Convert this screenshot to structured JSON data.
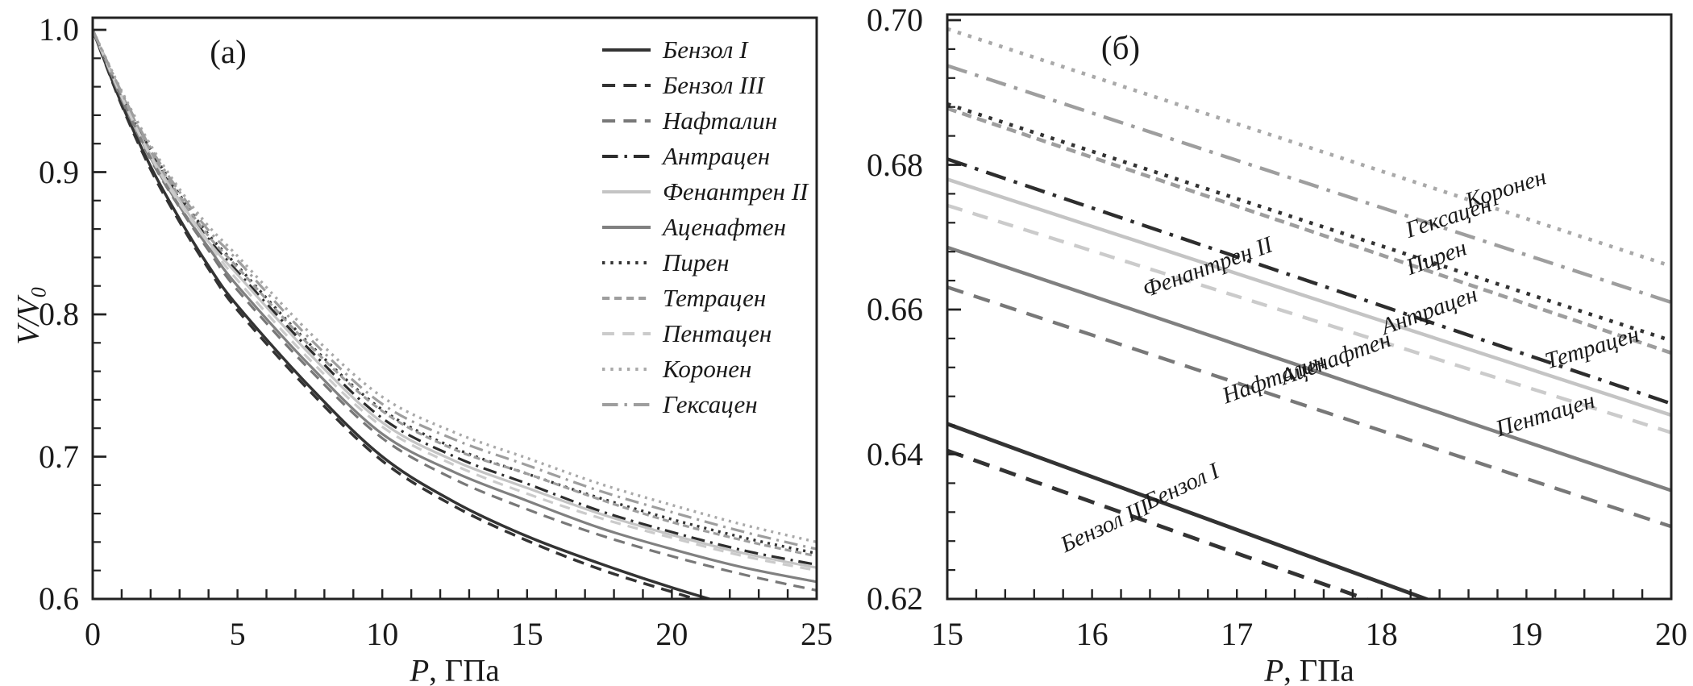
{
  "figure": {
    "background": "#ffffff",
    "axis_color": "#222222",
    "panel_a": {
      "marker": "(a)",
      "x_axis": {
        "title_var": "P",
        "title_unit": ", ГПа",
        "tick_labels": [
          "0",
          "5",
          "10",
          "15",
          "20",
          "25"
        ],
        "tick_values": [
          0,
          5,
          10,
          15,
          20,
          25
        ],
        "minor_step": 1,
        "range": [
          0,
          25
        ]
      },
      "y_axis": {
        "title_var": "V/V",
        "title_sub": "0",
        "tick_labels": [
          "1.0",
          "0.9",
          "0.8",
          "0.7",
          "0.6"
        ],
        "tick_values": [
          1.0,
          0.9,
          0.8,
          0.7,
          0.6
        ],
        "minor_step": 0.02,
        "range": [
          0.6,
          1.0
        ]
      }
    },
    "panel_b": {
      "marker": "(б)",
      "x_axis": {
        "title_var": "P",
        "title_unit": ", ГПа",
        "tick_labels": [
          "15",
          "16",
          "17",
          "18",
          "19",
          "20"
        ],
        "tick_values": [
          15,
          16,
          17,
          18,
          19,
          20
        ],
        "minor_step": 0.2,
        "range": [
          15,
          20
        ]
      },
      "y_axis": {
        "tick_labels": [
          "0.70",
          "0.68",
          "0.66",
          "0.64",
          "0.62"
        ],
        "tick_values": [
          0.7,
          0.68,
          0.66,
          0.64,
          0.62
        ],
        "minor_step": 0.004,
        "range": [
          0.62,
          0.7
        ]
      }
    }
  },
  "chart_data": [
    {
      "type": "line",
      "panel": "a",
      "title": "(a)",
      "xlabel": "P, ГПа",
      "ylabel": "V/V0",
      "xlim": [
        0,
        25
      ],
      "ylim": [
        0.6,
        1.0
      ],
      "grid": false,
      "legend_position": "upper right inside",
      "x": [
        0,
        1,
        2,
        3,
        4,
        5,
        7.5,
        10,
        12.5,
        15,
        17.5,
        20,
        22.5,
        25
      ],
      "series": [
        {
          "name": "Бензол I",
          "values": [
            1.0,
            0.948,
            0.904,
            0.867,
            0.834,
            0.806,
            0.749,
            0.7,
            0.668,
            0.644,
            0.625,
            0.608,
            0.593,
            0.58
          ]
        },
        {
          "name": "Бензол III",
          "values": [
            1.0,
            0.947,
            0.902,
            0.865,
            0.832,
            0.803,
            0.746,
            0.697,
            0.665,
            0.641,
            0.621,
            0.605,
            0.59,
            0.577
          ]
        },
        {
          "name": "Нафталин",
          "values": [
            1.0,
            0.951,
            0.909,
            0.875,
            0.845,
            0.817,
            0.761,
            0.713,
            0.684,
            0.663,
            0.645,
            0.63,
            0.617,
            0.606
          ]
        },
        {
          "name": "Антрацен",
          "values": [
            1.0,
            0.954,
            0.914,
            0.881,
            0.853,
            0.83,
            0.775,
            0.727,
            0.7,
            0.681,
            0.662,
            0.647,
            0.634,
            0.624
          ]
        },
        {
          "name": "Фенантрен II",
          "values": [
            1.0,
            0.953,
            0.912,
            0.88,
            0.851,
            0.828,
            0.772,
            0.724,
            0.697,
            0.678,
            0.66,
            0.645,
            0.632,
            0.622
          ]
        },
        {
          "name": "Аценафтен",
          "values": [
            1.0,
            0.952,
            0.91,
            0.876,
            0.847,
            0.82,
            0.764,
            0.716,
            0.689,
            0.669,
            0.65,
            0.635,
            0.622,
            0.612
          ]
        },
        {
          "name": "Пирен",
          "values": [
            1.0,
            0.955,
            0.916,
            0.884,
            0.856,
            0.834,
            0.779,
            0.733,
            0.706,
            0.688,
            0.671,
            0.656,
            0.643,
            0.632
          ]
        },
        {
          "name": "Тетрацен",
          "values": [
            1.0,
            0.955,
            0.915,
            0.883,
            0.855,
            0.833,
            0.778,
            0.732,
            0.705,
            0.688,
            0.67,
            0.654,
            0.641,
            0.63
          ]
        },
        {
          "name": "Пентацен",
          "values": [
            1.0,
            0.953,
            0.911,
            0.878,
            0.85,
            0.824,
            0.768,
            0.721,
            0.694,
            0.674,
            0.657,
            0.643,
            0.63,
            0.62
          ]
        },
        {
          "name": "Коронен",
          "values": [
            1.0,
            0.957,
            0.919,
            0.888,
            0.862,
            0.841,
            0.787,
            0.742,
            0.717,
            0.699,
            0.681,
            0.666,
            0.652,
            0.64
          ]
        },
        {
          "name": "Гексацен",
          "values": [
            1.0,
            0.956,
            0.917,
            0.886,
            0.859,
            0.838,
            0.783,
            0.737,
            0.712,
            0.694,
            0.676,
            0.661,
            0.647,
            0.635
          ]
        }
      ]
    },
    {
      "type": "line",
      "panel": "б",
      "title": "(б)",
      "xlabel": "P, ГПа",
      "ylabel": "V/V0",
      "xlim": [
        15,
        20
      ],
      "ylim": [
        0.62,
        0.7
      ],
      "grid": false,
      "labels_on_curves": true,
      "x": [
        15,
        20
      ],
      "series": [
        {
          "name": "Бензол I",
          "values": [
            0.6442,
            0.6076
          ]
        },
        {
          "name": "Бензол III",
          "values": [
            0.6405,
            0.605
          ]
        },
        {
          "name": "Нафталин",
          "values": [
            0.6631,
            0.63
          ]
        },
        {
          "name": "Антрацен",
          "values": [
            0.6808,
            0.647
          ]
        },
        {
          "name": "Фенантрен II",
          "values": [
            0.678,
            0.6454
          ]
        },
        {
          "name": "Аценафтен",
          "values": [
            0.6686,
            0.635
          ]
        },
        {
          "name": "Пирен",
          "values": [
            0.6884,
            0.6557
          ]
        },
        {
          "name": "Тетрацен",
          "values": [
            0.6878,
            0.654
          ]
        },
        {
          "name": "Пентацен",
          "values": [
            0.6744,
            0.643
          ]
        },
        {
          "name": "Коронен",
          "values": [
            0.6988,
            0.666
          ]
        },
        {
          "name": "Гексацен",
          "values": [
            0.6937,
            0.661
          ]
        }
      ]
    }
  ],
  "series_styles": [
    {
      "name": "Бензол I",
      "color": "#333333",
      "dash": null,
      "line_style": "solid"
    },
    {
      "name": "Бензол III",
      "color": "#333333",
      "dash": [
        14,
        9
      ],
      "line_style": "dashed"
    },
    {
      "name": "Нафталин",
      "color": "#787878",
      "dash": [
        14,
        9
      ],
      "line_style": "dashed"
    },
    {
      "name": "Антрацен",
      "color": "#2d2d2d",
      "dash": [
        17,
        7,
        3,
        7
      ],
      "line_style": "dash-dot"
    },
    {
      "name": "Фенантрен II",
      "color": "#c4c4c4",
      "dash": null,
      "line_style": "solid"
    },
    {
      "name": "Аценафтен",
      "color": "#808080",
      "dash": null,
      "line_style": "solid"
    },
    {
      "name": "Пирен",
      "color": "#333333",
      "dash": [
        3,
        6
      ],
      "line_style": "dotted"
    },
    {
      "name": "Тетрацен",
      "color": "#9e9e9e",
      "dash": [
        8,
        5
      ],
      "line_style": "short-dash"
    },
    {
      "name": "Пентацен",
      "color": "#cbcbcb",
      "dash": [
        13,
        9
      ],
      "line_style": "dashed"
    },
    {
      "name": "Коронен",
      "color": "#a9a9a9",
      "dash": [
        3,
        6
      ],
      "line_style": "dotted"
    },
    {
      "name": "Гексацен",
      "color": "#9e9e9e",
      "dash": [
        17,
        7,
        3,
        7
      ],
      "line_style": "dash-dot"
    }
  ],
  "legend": {
    "entries": [
      "Бензол I",
      "Бензол III",
      "Нафталин",
      "Антрацен",
      "Фенантрен II",
      "Аценафтен",
      "Пирен",
      "Тетрацен",
      "Пентацен",
      "Коронен",
      "Гексацен"
    ]
  }
}
